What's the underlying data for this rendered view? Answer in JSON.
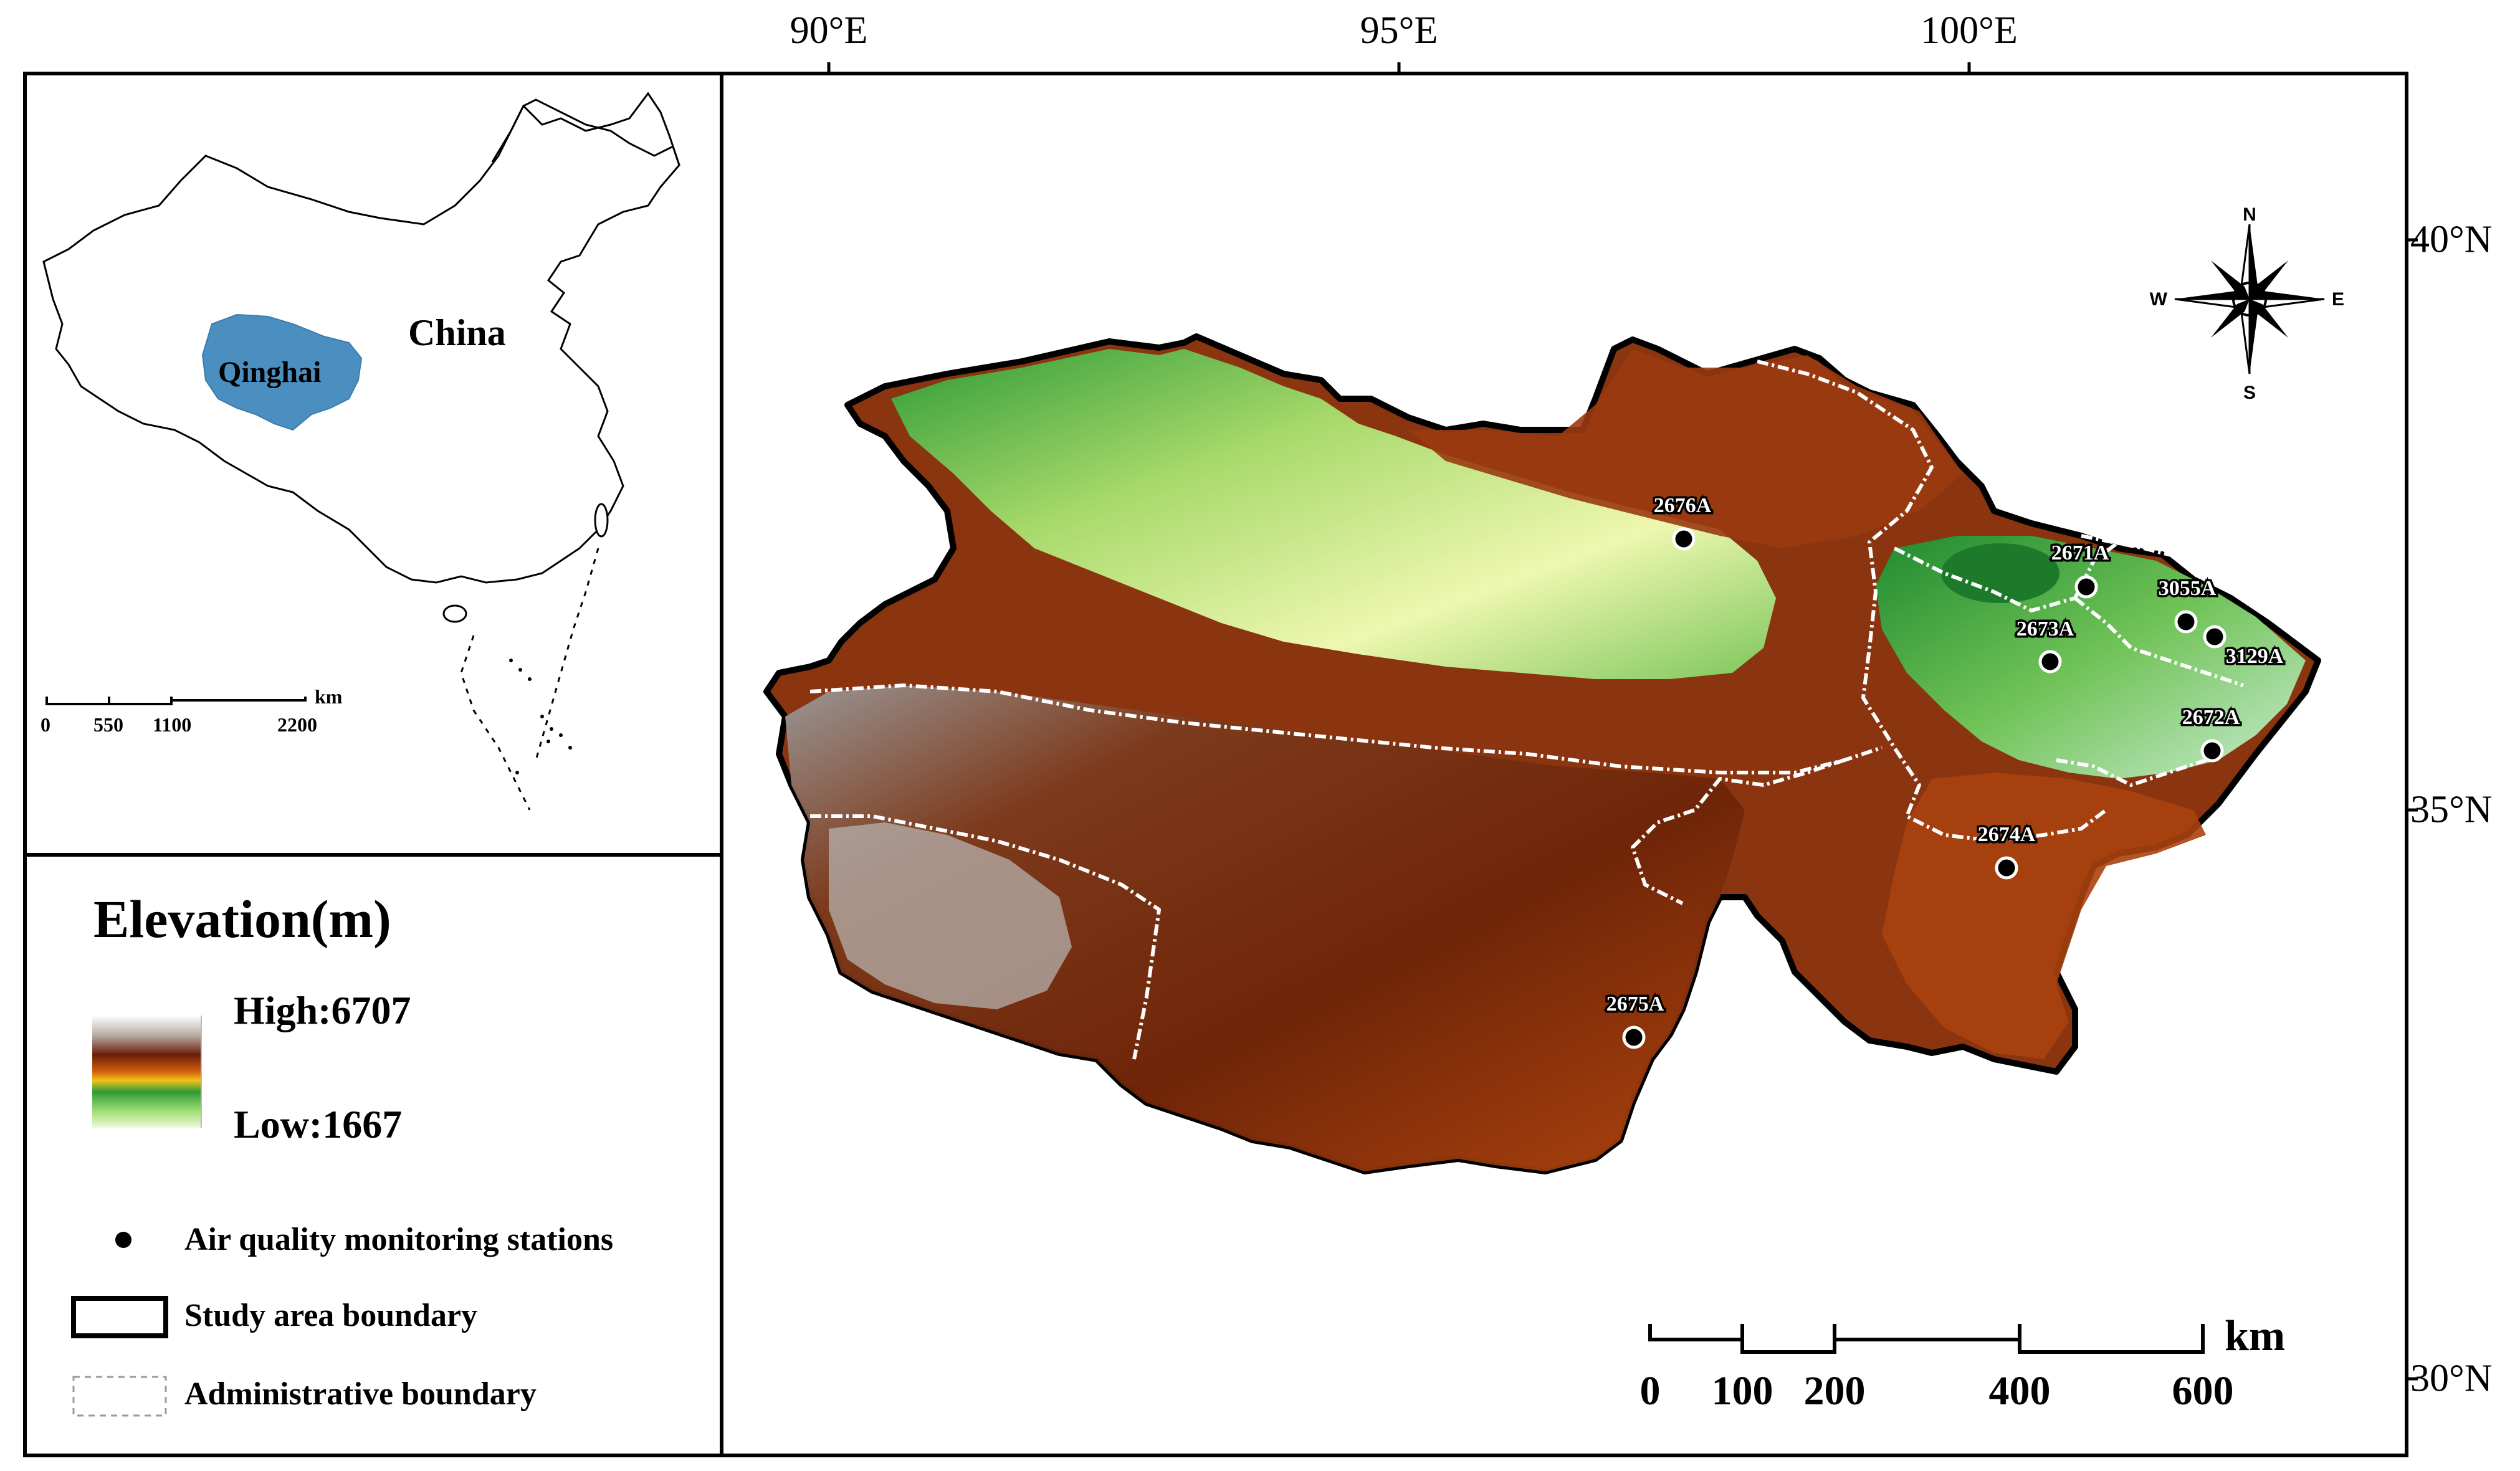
{
  "graticule": {
    "longitudes": [
      "90°E",
      "95°E",
      "100°E"
    ],
    "latitudes": [
      "40°N",
      "35°N",
      "30°N"
    ]
  },
  "inset": {
    "country_label": "China",
    "province_label": "Qinghai",
    "province_color": "#4a8fc0",
    "scale_numbers": [
      "0",
      "550",
      "1100",
      "2200"
    ],
    "scale_unit": "km"
  },
  "legend": {
    "title": "Elevation(m)",
    "high_label": "High:6707",
    "low_label": "Low:1667",
    "items": {
      "stations": "Air quality monitoring stations",
      "study_area": "Study area boundary",
      "admin": "Administrative boundary"
    }
  },
  "stations": [
    "2676A",
    "2671A",
    "3055A",
    "2673A",
    "3129A",
    "2672A",
    "2674A",
    "2675A"
  ],
  "compass": {
    "north": "N",
    "south": "S",
    "east": "E",
    "west": "W"
  },
  "scalebar": {
    "numbers": [
      "0",
      "100",
      "200",
      "400",
      "600"
    ],
    "unit": "km"
  }
}
